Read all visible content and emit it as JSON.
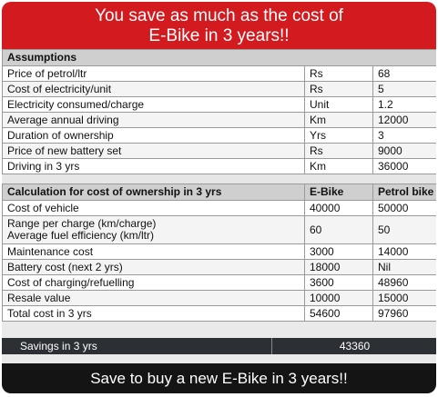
{
  "header": {
    "line1": "You save as much as the cost of",
    "line2": "E-Bike in 3 years!!"
  },
  "assumptions": {
    "title": "Assumptions",
    "rows": [
      {
        "label": "Price of petrol/ltr",
        "unit": "Rs",
        "value": "68"
      },
      {
        "label": "Cost of electricity/unit",
        "unit": "Rs",
        "value": "5"
      },
      {
        "label": "Electricity consumed/charge",
        "unit": "Unit",
        "value": "1.2"
      },
      {
        "label": "Average annual driving",
        "unit": "Km",
        "value": "12000"
      },
      {
        "label": "Duration of ownership",
        "unit": "Yrs",
        "value": "3"
      },
      {
        "label": "Price of new battery set",
        "unit": "Rs",
        "value": "9000"
      },
      {
        "label": "Driving in 3 yrs",
        "unit": "Km",
        "value": "36000"
      }
    ]
  },
  "calculation": {
    "title": "Calculation for cost of ownership in 3 yrs",
    "col_ebike": "E-Bike",
    "col_petrol": "Petrol bike",
    "rows": [
      {
        "label": "Cost of vehicle",
        "ebike": "40000",
        "petrol": "50000"
      },
      {
        "label": "Range per charge (km/charge)",
        "label2": "Average fuel efficiency (km/ltr)",
        "ebike": "60",
        "petrol": "50"
      },
      {
        "label": "Maintenance cost",
        "ebike": "3000",
        "petrol": "14000"
      },
      {
        "label": "Battery cost (next 2 yrs)",
        "ebike": "18000",
        "petrol": "Nil"
      },
      {
        "label": "Cost of charging/refuelling",
        "ebike": "3600",
        "petrol": "48960"
      },
      {
        "label": "Resale value",
        "ebike": "10000",
        "petrol": "15000"
      },
      {
        "label": "Total cost in 3 yrs",
        "ebike": "54600",
        "petrol": "97960"
      }
    ]
  },
  "savings": {
    "label": "Savings in 3 yrs",
    "value": "43360"
  },
  "footer": {
    "text": "Save to buy a new E-Bike in 3 years!!"
  }
}
